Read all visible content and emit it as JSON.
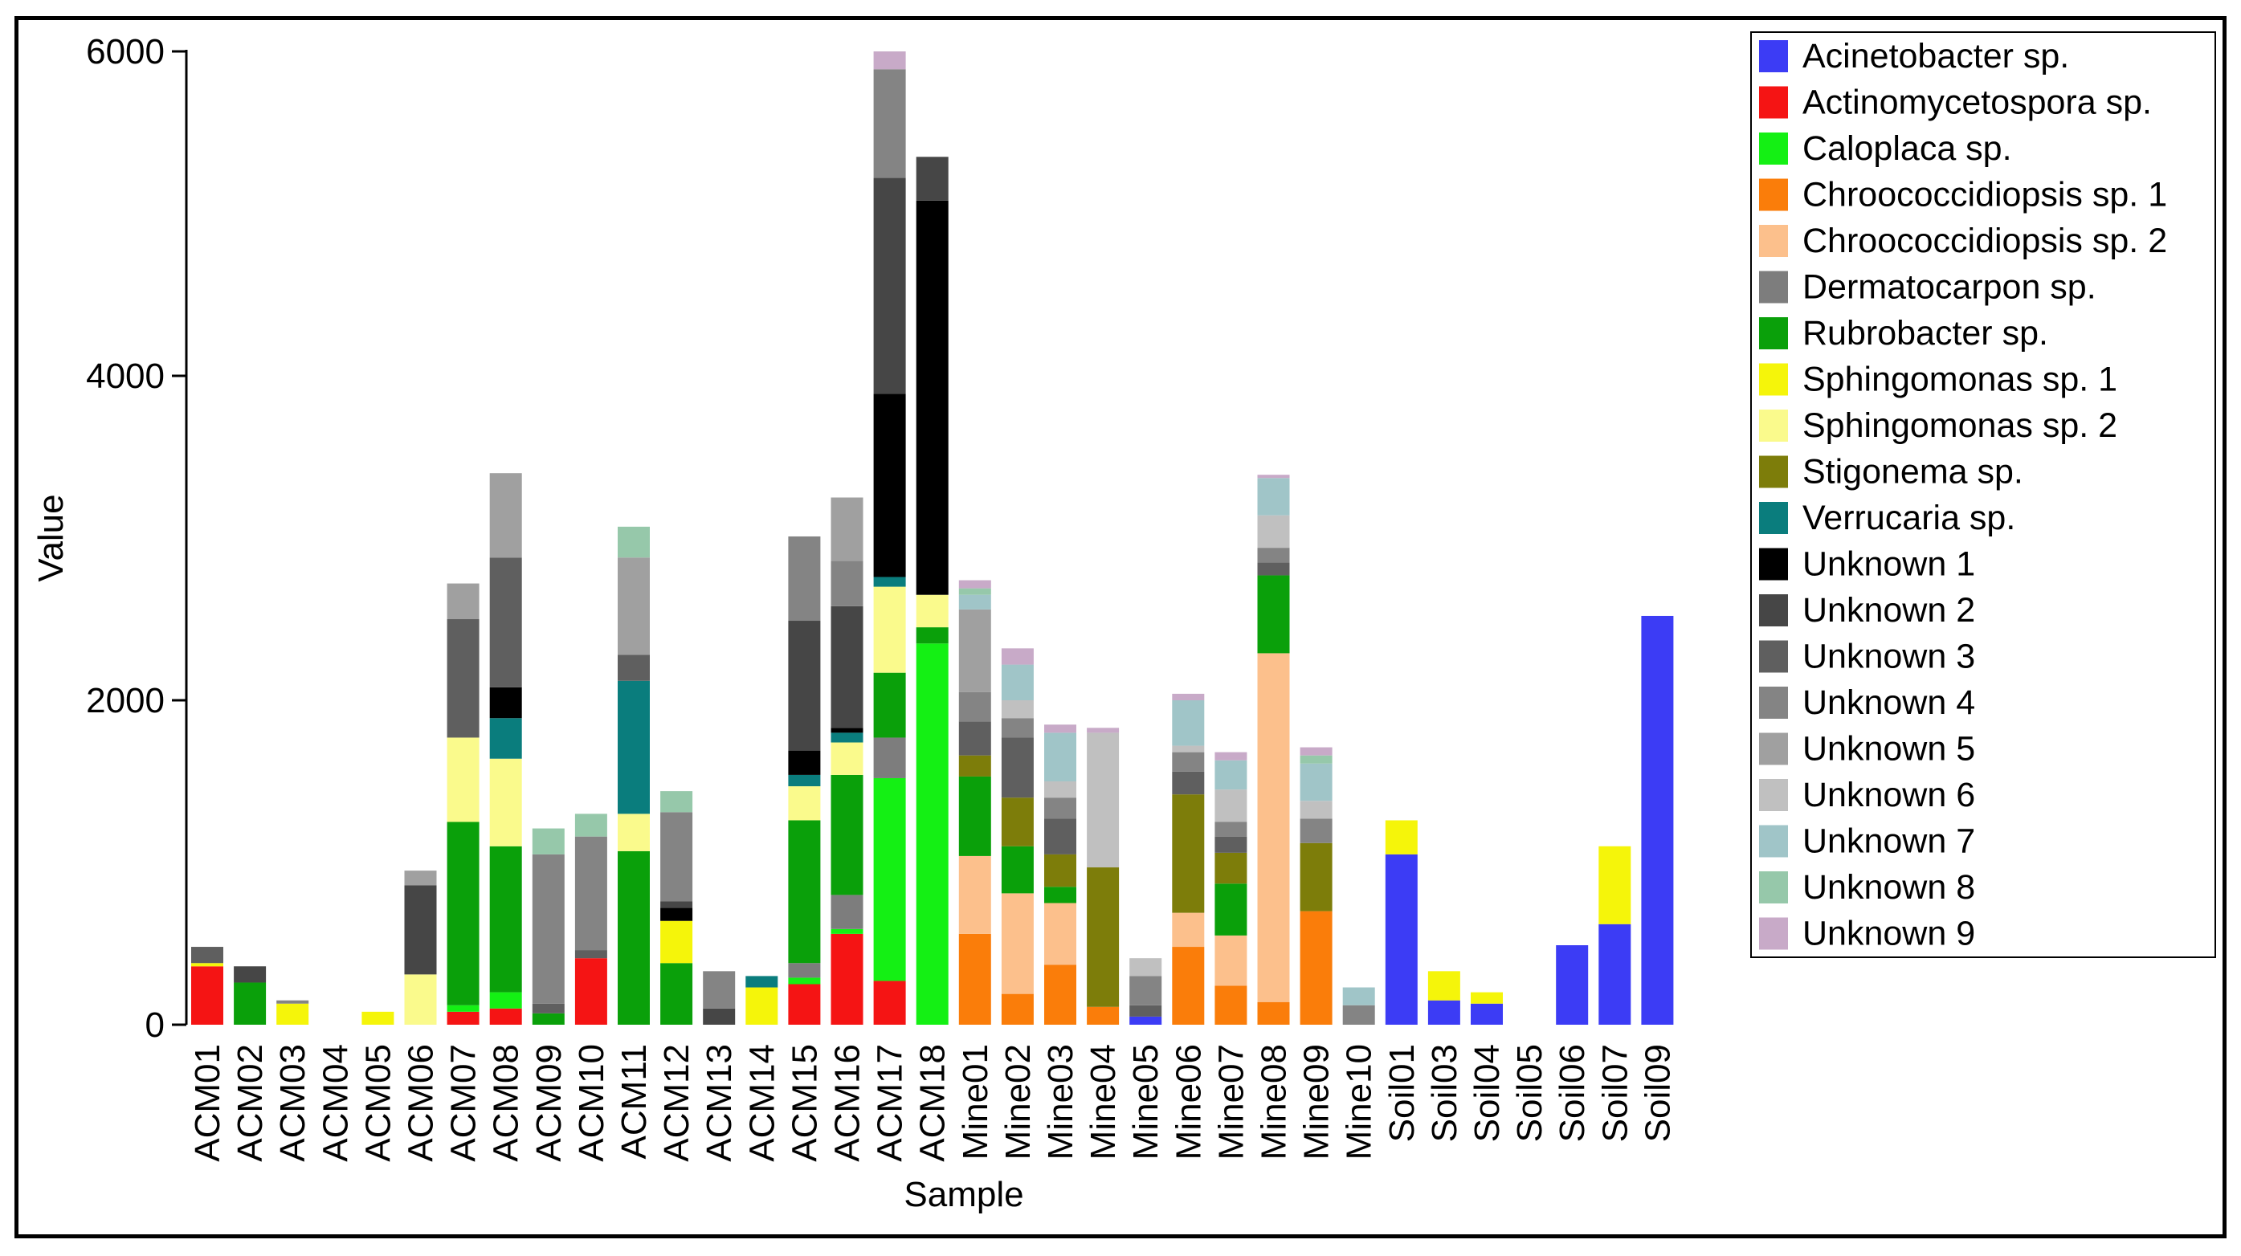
{
  "chart_data": {
    "type": "stacked-bar",
    "xlabel": "Sample",
    "ylabel": "Value",
    "ylim": [
      0,
      6000
    ],
    "yticks": [
      0,
      2000,
      4000,
      6000
    ],
    "legend_position": "right",
    "categories": [
      "ACM01",
      "ACM02",
      "ACM03",
      "ACM04",
      "ACM05",
      "ACM06",
      "ACM07",
      "ACM08",
      "ACM09",
      "ACM10",
      "ACM11",
      "ACM12",
      "ACM13",
      "ACM14",
      "ACM15",
      "ACM16",
      "ACM17",
      "ACM18",
      "Mine01",
      "Mine02",
      "Mine03",
      "Mine04",
      "Mine05",
      "Mine06",
      "Mine07",
      "Mine08",
      "Mine09",
      "Mine10",
      "Soil01",
      "Soil03",
      "Soil04",
      "Soil05",
      "Soil06",
      "Soil07",
      "Soil09"
    ],
    "series": [
      {
        "name": "Acinetobacter sp.",
        "color": "#3c3cf5",
        "values": [
          0,
          0,
          0,
          0,
          0,
          0,
          0,
          0,
          0,
          0,
          0,
          0,
          0,
          0,
          0,
          0,
          0,
          0,
          0,
          0,
          0,
          0,
          50,
          0,
          0,
          0,
          0,
          0,
          1050,
          150,
          130,
          0,
          490,
          620,
          2520
        ]
      },
      {
        "name": "Actinomycetospora sp.",
        "color": "#f51414",
        "values": [
          360,
          0,
          0,
          0,
          0,
          0,
          80,
          100,
          0,
          410,
          0,
          0,
          0,
          0,
          250,
          560,
          270,
          0,
          0,
          0,
          0,
          0,
          0,
          0,
          0,
          0,
          0,
          0,
          0,
          0,
          0,
          0,
          0,
          0,
          0
        ]
      },
      {
        "name": "Caloplaca sp.",
        "color": "#14f014",
        "values": [
          0,
          0,
          0,
          0,
          0,
          0,
          40,
          100,
          0,
          0,
          0,
          0,
          0,
          0,
          40,
          30,
          1250,
          2350,
          0,
          0,
          0,
          0,
          0,
          0,
          0,
          0,
          0,
          0,
          0,
          0,
          0,
          0,
          0,
          0,
          0
        ]
      },
      {
        "name": "Chroococcidiopsis sp. 1",
        "color": "#fa7d0a",
        "values": [
          0,
          0,
          0,
          0,
          0,
          0,
          0,
          0,
          0,
          0,
          0,
          0,
          0,
          0,
          0,
          0,
          0,
          0,
          560,
          190,
          370,
          110,
          0,
          480,
          240,
          140,
          700,
          0,
          0,
          0,
          0,
          0,
          0,
          0,
          0
        ]
      },
      {
        "name": "Chroococcidiopsis sp. 2",
        "color": "#fcc08c",
        "values": [
          0,
          0,
          0,
          0,
          0,
          0,
          0,
          0,
          0,
          0,
          0,
          0,
          0,
          0,
          0,
          0,
          0,
          0,
          480,
          620,
          380,
          0,
          0,
          210,
          310,
          2150,
          0,
          0,
          0,
          0,
          0,
          0,
          0,
          0,
          0
        ]
      },
      {
        "name": "Dermatocarpon sp.",
        "color": "#7d7d7d",
        "values": [
          0,
          0,
          0,
          0,
          0,
          0,
          0,
          0,
          0,
          0,
          0,
          0,
          0,
          0,
          90,
          210,
          250,
          0,
          0,
          0,
          0,
          0,
          0,
          0,
          0,
          0,
          0,
          0,
          0,
          0,
          0,
          0,
          0,
          0,
          0
        ]
      },
      {
        "name": "Rubrobacter sp.",
        "color": "#0aa00a",
        "values": [
          0,
          260,
          0,
          0,
          0,
          0,
          1130,
          900,
          70,
          0,
          1070,
          380,
          0,
          0,
          880,
          740,
          400,
          100,
          490,
          290,
          100,
          0,
          0,
          0,
          320,
          480,
          0,
          0,
          0,
          0,
          0,
          0,
          0,
          0,
          0
        ]
      },
      {
        "name": "Sphingomonas sp. 1",
        "color": "#f5f50a",
        "values": [
          20,
          0,
          130,
          0,
          80,
          0,
          0,
          0,
          0,
          0,
          0,
          260,
          0,
          230,
          0,
          0,
          0,
          0,
          0,
          0,
          0,
          0,
          0,
          0,
          0,
          0,
          0,
          0,
          210,
          180,
          70,
          0,
          0,
          480,
          0
        ]
      },
      {
        "name": "Sphingomonas sp. 2",
        "color": "#fafa8c",
        "values": [
          0,
          0,
          0,
          0,
          0,
          310,
          520,
          540,
          0,
          0,
          230,
          0,
          0,
          0,
          210,
          200,
          530,
          200,
          0,
          0,
          0,
          0,
          0,
          0,
          0,
          0,
          0,
          0,
          0,
          0,
          0,
          0,
          0,
          0,
          0
        ]
      },
      {
        "name": "Stigonema sp.",
        "color": "#7d7d0a",
        "values": [
          0,
          0,
          0,
          0,
          0,
          0,
          0,
          0,
          0,
          0,
          0,
          0,
          0,
          0,
          0,
          0,
          0,
          0,
          130,
          300,
          200,
          860,
          0,
          730,
          190,
          0,
          420,
          0,
          0,
          0,
          0,
          0,
          0,
          0,
          0
        ]
      },
      {
        "name": "Verrucaria sp.",
        "color": "#0a7d7d",
        "values": [
          0,
          0,
          0,
          0,
          0,
          0,
          0,
          250,
          0,
          0,
          820,
          0,
          0,
          70,
          70,
          60,
          60,
          0,
          0,
          0,
          0,
          0,
          0,
          0,
          0,
          0,
          0,
          0,
          0,
          0,
          0,
          0,
          0,
          0,
          0
        ]
      },
      {
        "name": "Unknown 1",
        "color": "#000000",
        "values": [
          0,
          0,
          0,
          0,
          0,
          0,
          0,
          190,
          0,
          0,
          0,
          80,
          0,
          0,
          150,
          30,
          1130,
          2430,
          0,
          0,
          0,
          0,
          0,
          0,
          0,
          0,
          0,
          0,
          0,
          0,
          0,
          0,
          0,
          0,
          0
        ]
      },
      {
        "name": "Unknown 2",
        "color": "#464646",
        "values": [
          0,
          100,
          0,
          0,
          0,
          550,
          0,
          0,
          0,
          0,
          0,
          40,
          100,
          0,
          800,
          750,
          1330,
          270,
          0,
          0,
          0,
          0,
          0,
          0,
          0,
          0,
          0,
          0,
          0,
          0,
          0,
          0,
          0,
          0,
          0
        ]
      },
      {
        "name": "Unknown 3",
        "color": "#5f5f5f",
        "values": [
          100,
          0,
          0,
          0,
          0,
          0,
          730,
          800,
          60,
          50,
          160,
          0,
          0,
          0,
          0,
          0,
          0,
          0,
          210,
          370,
          220,
          0,
          70,
          140,
          100,
          80,
          0,
          0,
          0,
          0,
          0,
          0,
          0,
          0,
          0
        ]
      },
      {
        "name": "Unknown 4",
        "color": "#848484",
        "values": [
          0,
          0,
          20,
          0,
          0,
          0,
          0,
          0,
          920,
          700,
          0,
          550,
          230,
          0,
          520,
          280,
          670,
          0,
          180,
          120,
          130,
          0,
          180,
          120,
          90,
          90,
          150,
          120,
          0,
          0,
          0,
          0,
          0,
          0,
          0
        ]
      },
      {
        "name": "Unknown 5",
        "color": "#a0a0a0",
        "values": [
          0,
          0,
          0,
          0,
          0,
          90,
          220,
          520,
          0,
          0,
          600,
          0,
          0,
          0,
          0,
          390,
          0,
          0,
          510,
          0,
          0,
          0,
          0,
          0,
          0,
          0,
          0,
          0,
          0,
          0,
          0,
          0,
          0,
          0,
          0
        ]
      },
      {
        "name": "Unknown 6",
        "color": "#c0c0c0",
        "values": [
          0,
          0,
          0,
          0,
          0,
          0,
          0,
          0,
          0,
          0,
          0,
          0,
          0,
          0,
          0,
          0,
          0,
          0,
          0,
          110,
          100,
          830,
          110,
          40,
          200,
          200,
          110,
          0,
          0,
          0,
          0,
          0,
          0,
          0,
          0
        ]
      },
      {
        "name": "Unknown 7",
        "color": "#a0c5c8",
        "values": [
          0,
          0,
          0,
          0,
          0,
          0,
          0,
          0,
          0,
          0,
          0,
          0,
          0,
          0,
          0,
          0,
          0,
          0,
          90,
          220,
          300,
          0,
          0,
          280,
          180,
          230,
          230,
          110,
          0,
          0,
          0,
          0,
          0,
          0,
          0
        ]
      },
      {
        "name": "Unknown 8",
        "color": "#96c8aa",
        "values": [
          0,
          0,
          0,
          0,
          0,
          0,
          0,
          0,
          160,
          140,
          190,
          130,
          0,
          0,
          0,
          0,
          0,
          0,
          40,
          0,
          0,
          0,
          0,
          0,
          0,
          0,
          50,
          0,
          0,
          0,
          0,
          0,
          0,
          0,
          0
        ]
      },
      {
        "name": "Unknown 9",
        "color": "#c8aac8",
        "values": [
          0,
          0,
          0,
          0,
          0,
          0,
          0,
          0,
          0,
          0,
          0,
          0,
          0,
          0,
          0,
          0,
          110,
          0,
          50,
          100,
          50,
          30,
          0,
          40,
          50,
          20,
          50,
          0,
          0,
          0,
          0,
          0,
          0,
          0,
          0
        ]
      }
    ]
  }
}
